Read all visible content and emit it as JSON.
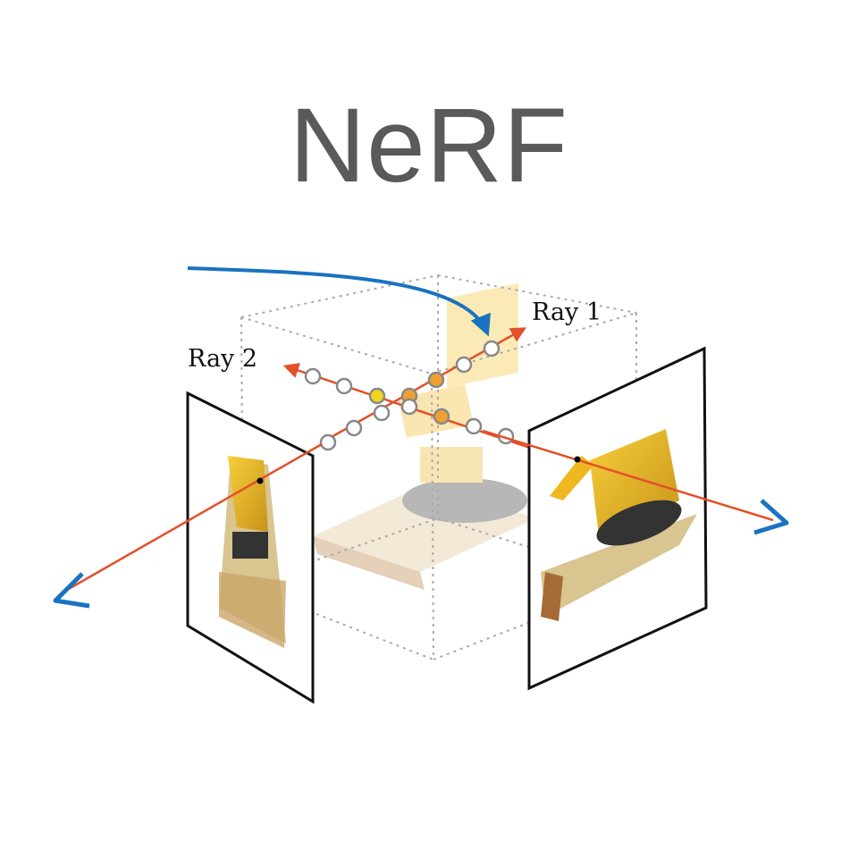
{
  "title": "NeRF",
  "rays": [
    {
      "label": "Ray 1"
    },
    {
      "label": "Ray 2"
    }
  ],
  "colors": {
    "ray": "#e4502a",
    "camera": "#1a72c0",
    "sample_open": "#888888",
    "sample_yellow": "#f2d51a",
    "sample_orange": "#f0a030",
    "box_edges": "#aaaaaa"
  }
}
